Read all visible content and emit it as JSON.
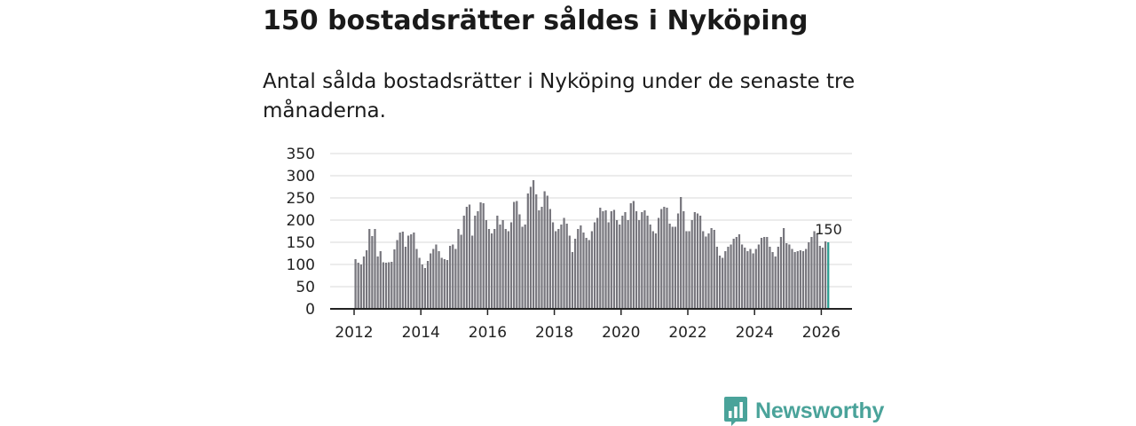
{
  "title": "150 bostadsrätter såldes i Nyköping",
  "subtitle": "Antal sålda bostadsrätter i Nyköping under de senaste tre månaderna.",
  "brand": {
    "name": "Newsworthy",
    "icon": "bar-chart-speech-bubble-icon",
    "color": "#4aa39a"
  },
  "colors": {
    "bar": "#77767d",
    "highlight": "#2a9d8f",
    "grid": "#d9d9d9",
    "axis": "#222222"
  },
  "chart_data": {
    "type": "bar",
    "title": "150 bostadsrätter såldes i Nyköping",
    "xlabel": "",
    "ylabel": "",
    "ylim": [
      0,
      350
    ],
    "yticks": [
      0,
      50,
      100,
      150,
      200,
      250,
      300,
      350
    ],
    "xticks": [
      "2012",
      "2014",
      "2016",
      "2018",
      "2020",
      "2022",
      "2024",
      "2026"
    ],
    "grid": true,
    "start": "2012-01",
    "frequency": "monthly",
    "highlight_label": "150",
    "values": [
      112,
      104,
      100,
      118,
      132,
      180,
      164,
      180,
      118,
      130,
      105,
      104,
      105,
      106,
      134,
      155,
      172,
      174,
      140,
      165,
      168,
      172,
      135,
      115,
      100,
      92,
      108,
      125,
      135,
      145,
      130,
      115,
      112,
      110,
      142,
      145,
      135,
      180,
      167,
      210,
      230,
      235,
      165,
      210,
      220,
      240,
      238,
      200,
      180,
      170,
      180,
      210,
      190,
      200,
      180,
      175,
      195,
      241,
      243,
      213,
      185,
      190,
      260,
      275,
      290,
      258,
      222,
      230,
      265,
      255,
      225,
      195,
      175,
      180,
      190,
      205,
      192,
      165,
      128,
      158,
      180,
      188,
      172,
      160,
      155,
      175,
      195,
      205,
      228,
      220,
      222,
      195,
      220,
      223,
      200,
      190,
      210,
      218,
      200,
      238,
      243,
      220,
      200,
      218,
      222,
      210,
      190,
      175,
      170,
      205,
      225,
      230,
      228,
      192,
      185,
      185,
      215,
      252,
      220,
      175,
      175,
      200,
      218,
      215,
      210,
      175,
      163,
      170,
      182,
      178,
      140,
      120,
      115,
      130,
      140,
      145,
      158,
      162,
      168,
      145,
      138,
      130,
      135,
      125,
      135,
      145,
      160,
      162,
      162,
      140,
      128,
      118,
      140,
      162,
      182,
      148,
      145,
      135,
      128,
      130,
      132,
      130,
      135,
      150,
      162,
      175,
      170,
      142,
      138,
      152,
      150
    ]
  }
}
